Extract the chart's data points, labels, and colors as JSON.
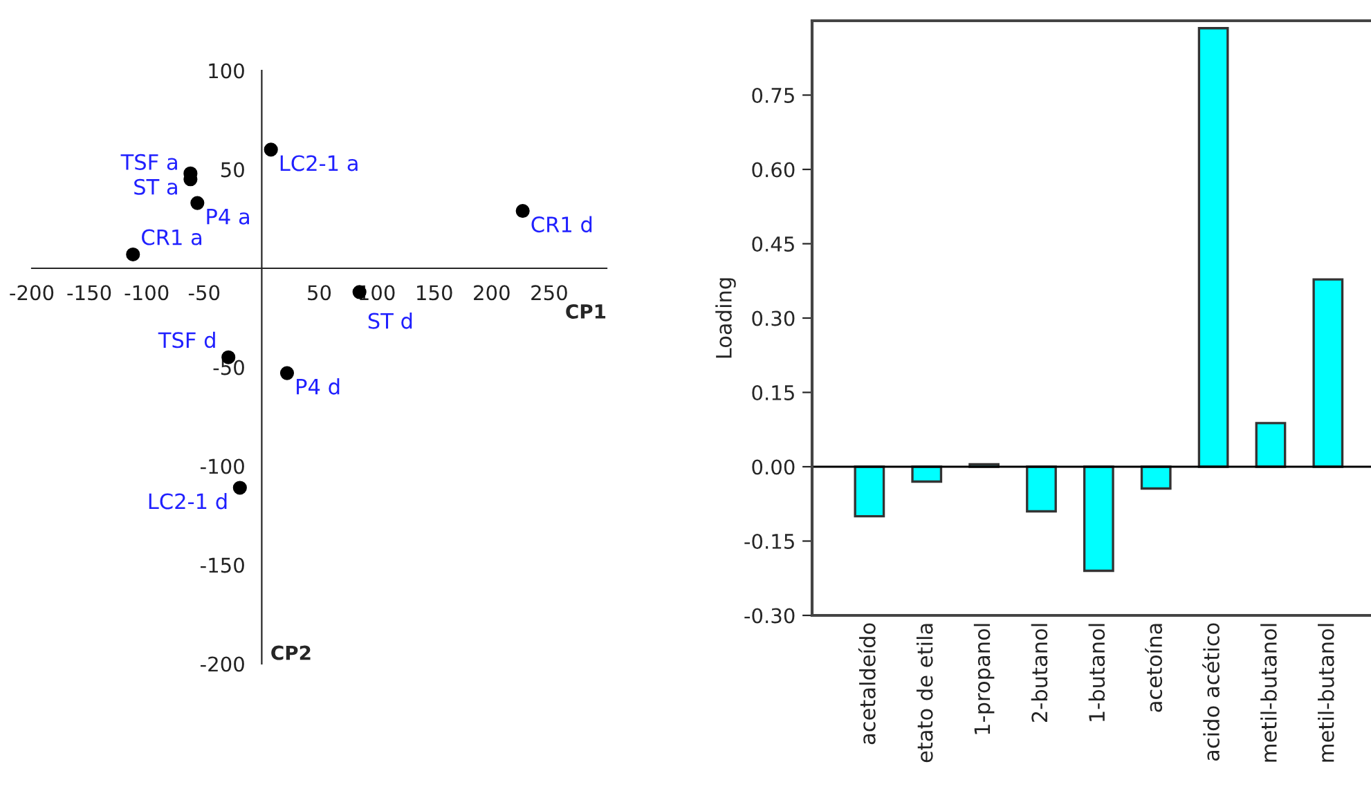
{
  "chart_data": [
    {
      "type": "scatter",
      "xlabel": "CP1",
      "ylabel": "CP2",
      "xlim": [
        -200,
        300
      ],
      "ylim": [
        -200,
        100
      ],
      "xticks": [
        -200,
        -150,
        -100,
        -50,
        50,
        100,
        150,
        200,
        250
      ],
      "yticks": [
        -200,
        -150,
        -100,
        -50,
        50,
        100
      ],
      "grid": false,
      "marker": "circle",
      "series": [
        {
          "color": "#000000",
          "x": [
            8,
            -62,
            -62,
            -56,
            -112,
            227,
            85,
            -29,
            22,
            -19
          ],
          "values": [
            60,
            48,
            45,
            33,
            7,
            29,
            -12,
            -45,
            -53,
            -111
          ]
        }
      ],
      "annotations": [
        {
          "text": "LC2-1 a",
          "x": 8,
          "y": 60
        },
        {
          "text": "ST a",
          "x": -62,
          "y": 48
        },
        {
          "text": "TSF a",
          "x": -62,
          "y": 45
        },
        {
          "text": "P4 a",
          "x": -56,
          "y": 33
        },
        {
          "text": "CR1 a",
          "x": -112,
          "y": 7
        },
        {
          "text": "CR1 d",
          "x": 227,
          "y": 29
        },
        {
          "text": "ST d",
          "x": 85,
          "y": -12
        },
        {
          "text": "TSF d",
          "x": -29,
          "y": -45
        },
        {
          "text": "P4 d",
          "x": 22,
          "y": -53
        },
        {
          "text": "LC2-1 d",
          "x": -19,
          "y": -111
        }
      ]
    },
    {
      "type": "bar",
      "ylabel": "Loading",
      "categories": [
        "acetaldeído",
        "etato de etila",
        "1-propanol",
        "2-butanol",
        "1-butanol",
        "acetoína",
        "acido acético",
        "metil-butanol",
        "metil-butanol"
      ],
      "values": [
        -0.1,
        -0.03,
        0.005,
        -0.09,
        -0.21,
        -0.044,
        0.885,
        0.088,
        0.378
      ],
      "color": "#00ffff",
      "ylim": [
        -0.3,
        0.9
      ],
      "yticks": [
        {
          "value": -0.3,
          "label": "-0.30"
        },
        {
          "value": -0.15,
          "label": "-0.15"
        },
        {
          "value": 0,
          "label": "0.00"
        },
        {
          "value": 0.15,
          "label": "0.15"
        },
        {
          "value": 0.3,
          "label": "0.30"
        },
        {
          "value": 0.45,
          "label": "0.45"
        },
        {
          "value": 0.6,
          "label": "0.60"
        },
        {
          "value": 0.75,
          "label": "0.75"
        }
      ],
      "ref_lines": [
        {
          "axis": "y",
          "value": 0,
          "color": "#000000"
        }
      ],
      "grid": false
    }
  ]
}
